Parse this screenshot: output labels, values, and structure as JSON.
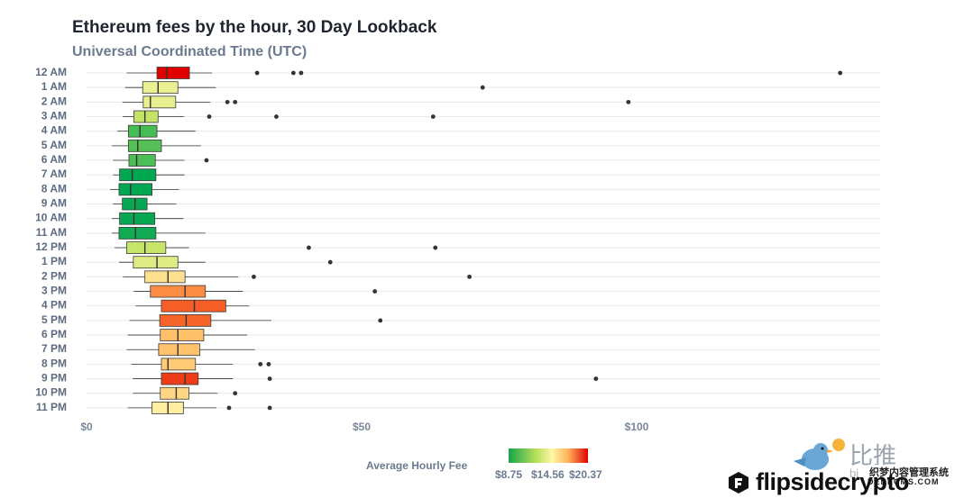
{
  "chart_data": {
    "type": "box",
    "title": "Ethereum fees by the hour, 30 Day Lookback",
    "subtitle": "Universal Coordinated Time (UTC)",
    "xlim": [
      0,
      145
    ],
    "x_ticks": [
      0,
      50,
      100
    ],
    "x_tick_labels": [
      "$0",
      "$50",
      "$100"
    ],
    "grid": "horizontal",
    "color_legend": {
      "title": "Average Hourly Fee",
      "tick_labels": [
        "$8.75",
        "$14.56",
        "$20.37"
      ],
      "min": 8.75,
      "mid": 14.56,
      "max": 20.37
    },
    "categories": [
      "12 AM",
      "1 AM",
      "2 AM",
      "3 AM",
      "4 AM",
      "5 AM",
      "6 AM",
      "7 AM",
      "8 AM",
      "9 AM",
      "10 AM",
      "11 AM",
      "12 PM",
      "1 PM",
      "2 PM",
      "3 PM",
      "4 PM",
      "5 PM",
      "6 PM",
      "7 PM",
      "8 PM",
      "9 PM",
      "10 PM",
      "11 PM"
    ],
    "boxes": [
      {
        "whisker_low": 7.3,
        "q1": 12.8,
        "median": 14.6,
        "q3": 18.7,
        "whisker_high": 22.8,
        "avg_fee": 20.4,
        "outliers": [
          31,
          37.6,
          39,
          137
        ]
      },
      {
        "whisker_low": 7,
        "q1": 10.2,
        "median": 13,
        "q3": 16.6,
        "whisker_high": 23.5,
        "avg_fee": 14.5,
        "outliers": [
          72
        ]
      },
      {
        "whisker_low": 6.5,
        "q1": 10.3,
        "median": 11.6,
        "q3": 16.2,
        "whisker_high": 22.5,
        "avg_fee": 14.4,
        "outliers": [
          25.6,
          27,
          98.5
        ]
      },
      {
        "whisker_low": 6.6,
        "q1": 8.6,
        "median": 10.6,
        "q3": 13,
        "whisker_high": 17.7,
        "avg_fee": 13.2,
        "outliers": [
          22.3,
          34.5,
          63
        ]
      },
      {
        "whisker_low": 5.6,
        "q1": 7.6,
        "median": 9.7,
        "q3": 12.8,
        "whisker_high": 19.8,
        "avg_fee": 10.3,
        "outliers": []
      },
      {
        "whisker_low": 4.6,
        "q1": 7.6,
        "median": 9.3,
        "q3": 13.6,
        "whisker_high": 20.8,
        "avg_fee": 10.6,
        "outliers": []
      },
      {
        "whisker_low": 4.8,
        "q1": 7.7,
        "median": 9.1,
        "q3": 12.5,
        "whisker_high": 17.8,
        "avg_fee": 10.4,
        "outliers": [
          21.8
        ]
      },
      {
        "whisker_low": 4.8,
        "q1": 6,
        "median": 8.3,
        "q3": 12.6,
        "whisker_high": 17.8,
        "avg_fee": 8.8,
        "outliers": []
      },
      {
        "whisker_low": 4.3,
        "q1": 5.9,
        "median": 8,
        "q3": 11.9,
        "whisker_high": 16.8,
        "avg_fee": 8.8,
        "outliers": []
      },
      {
        "whisker_low": 4.8,
        "q1": 6.5,
        "median": 8.8,
        "q3": 11,
        "whisker_high": 16.3,
        "avg_fee": 8.9,
        "outliers": []
      },
      {
        "whisker_low": 4.6,
        "q1": 6,
        "median": 8.6,
        "q3": 12.4,
        "whisker_high": 17.6,
        "avg_fee": 8.9,
        "outliers": []
      },
      {
        "whisker_low": 4.6,
        "q1": 5.9,
        "median": 8.9,
        "q3": 12.6,
        "whisker_high": 21.6,
        "avg_fee": 9.1,
        "outliers": []
      },
      {
        "whisker_low": 5.1,
        "q1": 7.3,
        "median": 10.6,
        "q3": 14.4,
        "whisker_high": 18.6,
        "avg_fee": 13.3,
        "outliers": [
          40.4,
          63.4
        ]
      },
      {
        "whisker_low": 5.9,
        "q1": 8.5,
        "median": 12.8,
        "q3": 16.6,
        "whisker_high": 21.6,
        "avg_fee": 14.1,
        "outliers": [
          44.3
        ]
      },
      {
        "whisker_low": 6.6,
        "q1": 10.6,
        "median": 14.8,
        "q3": 17.9,
        "whisker_high": 27.6,
        "avg_fee": 15.9,
        "outliers": [
          30.4,
          69.6
        ]
      },
      {
        "whisker_low": 8.6,
        "q1": 11.6,
        "median": 17.9,
        "q3": 21.6,
        "whisker_high": 28.4,
        "avg_fee": 18.2,
        "outliers": [
          52.4
        ]
      },
      {
        "whisker_low": 8.9,
        "q1": 13.6,
        "median": 19.6,
        "q3": 25.3,
        "whisker_high": 29.6,
        "avg_fee": 19.1,
        "outliers": []
      },
      {
        "whisker_low": 7.8,
        "q1": 13.3,
        "median": 18.1,
        "q3": 22.6,
        "whisker_high": 33.6,
        "avg_fee": 19.0,
        "outliers": [
          53.4
        ]
      },
      {
        "whisker_low": 7.5,
        "q1": 13.4,
        "median": 16.6,
        "q3": 21.3,
        "whisker_high": 29.2,
        "avg_fee": 17.0,
        "outliers": []
      },
      {
        "whisker_low": 7.3,
        "q1": 13.1,
        "median": 16.6,
        "q3": 20.6,
        "whisker_high": 30.6,
        "avg_fee": 16.9,
        "outliers": []
      },
      {
        "whisker_low": 8.1,
        "q1": 13.6,
        "median": 14.8,
        "q3": 19.8,
        "whisker_high": 26.6,
        "avg_fee": 16.6,
        "outliers": [
          31.6,
          33.1
        ]
      },
      {
        "whisker_low": 8.4,
        "q1": 13.6,
        "median": 17.9,
        "q3": 20.3,
        "whisker_high": 26.6,
        "avg_fee": 19.6,
        "outliers": [
          33.3,
          92.6
        ]
      },
      {
        "whisker_low": 8.4,
        "q1": 13.4,
        "median": 16.3,
        "q3": 18.6,
        "whisker_high": 23.8,
        "avg_fee": 16.2,
        "outliers": [
          27
        ]
      },
      {
        "whisker_low": 7.5,
        "q1": 11.9,
        "median": 14.8,
        "q3": 17.6,
        "whisker_high": 23.6,
        "avg_fee": 15.4,
        "outliers": [
          25.9,
          33.3
        ]
      }
    ]
  },
  "brand": {
    "name": "flipsidecrypto"
  },
  "watermark": {
    "line1": "比推",
    "line2": "bi",
    "line3": "织梦内容管理系统",
    "line4": "DEDECMS.COM"
  }
}
